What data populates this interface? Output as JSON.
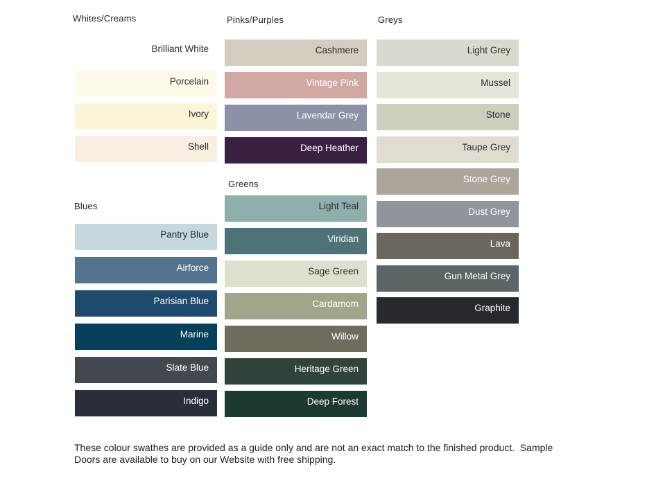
{
  "page": {
    "background": "#FFFFFF"
  },
  "groups": [
    {
      "title": "Whites/Creams",
      "swatches": [
        {
          "name": "Brilliant White",
          "color": "#FFFFFF",
          "label_color": "#2D2D2D"
        },
        {
          "name": "Porcelain",
          "color": "#FDFBE7",
          "label_color": "#2D2D2D"
        },
        {
          "name": "Ivory",
          "color": "#FAF5D8",
          "label_color": "#2D2D2D"
        },
        {
          "name": "Shell",
          "color": "#F8EFE0",
          "label_color": "#2D2D2D"
        }
      ]
    },
    {
      "title": "Blues",
      "swatches": [
        {
          "name": "Pantry Blue",
          "color": "#C5D8DE",
          "label_color": "#2D2D2D"
        },
        {
          "name": "Airforce",
          "color": "#53748E",
          "label_color": "#FFFFFF"
        },
        {
          "name": "Parisian Blue",
          "color": "#1E4A6B",
          "label_color": "#FFFFFF"
        },
        {
          "name": "Marine",
          "color": "#04405A",
          "label_color": "#FFFFFF"
        },
        {
          "name": "Slate Blue",
          "color": "#434850",
          "label_color": "#FFFFFF"
        },
        {
          "name": "Indigo",
          "color": "#2A2E38",
          "label_color": "#FFFFFF"
        }
      ]
    },
    {
      "title": "Pinks/Purples",
      "swatches": [
        {
          "name": "Cashmere",
          "color": "#D2CDBF",
          "label_color": "#2D2D2D"
        },
        {
          "name": "Vintage Pink",
          "color": "#D1A8A4",
          "label_color": "#FFFFFF"
        },
        {
          "name": "Lavendar Grey",
          "color": "#8C92A5",
          "label_color": "#FFFFFF"
        },
        {
          "name": "Deep Heather",
          "color": "#3A2042",
          "label_color": "#FFFFFF"
        }
      ]
    },
    {
      "title": "Greens",
      "swatches": [
        {
          "name": "Light Teal",
          "color": "#8FAFAD",
          "label_color": "#2D2D2D"
        },
        {
          "name": "Viridian",
          "color": "#4D7277",
          "label_color": "#FFFFFF"
        },
        {
          "name": "Sage Green",
          "color": "#DDE0CC",
          "label_color": "#2D2D2D"
        },
        {
          "name": "Cardamom",
          "color": "#A0A689",
          "label_color": "#FFFFFF"
        },
        {
          "name": "Willow",
          "color": "#6E6C5C",
          "label_color": "#FFFFFF"
        },
        {
          "name": "Heritage Green",
          "color": "#314439",
          "label_color": "#FFFFFF"
        },
        {
          "name": "Deep Forest",
          "color": "#1C3A31",
          "label_color": "#FFFFFF"
        }
      ]
    },
    {
      "title": "Greys",
      "swatches": [
        {
          "name": "Light Grey",
          "color": "#D9DACE",
          "label_color": "#2D2D2D"
        },
        {
          "name": "Mussel",
          "color": "#E3E5D7",
          "label_color": "#2D2D2D"
        },
        {
          "name": "Stone",
          "color": "#CCCFBE",
          "label_color": "#2D2D2D"
        },
        {
          "name": "Taupe Grey",
          "color": "#E1DCD0",
          "label_color": "#2D2D2D"
        },
        {
          "name": "Stone Grey",
          "color": "#ACA59A",
          "label_color": "#FFFFFF"
        },
        {
          "name": "Dust Grey",
          "color": "#90949B",
          "label_color": "#FFFFFF"
        },
        {
          "name": "Lava",
          "color": "#6A665B",
          "label_color": "#FFFFFF"
        },
        {
          "name": "Gun Metal Grey",
          "color": "#596665",
          "label_color": "#FFFFFF"
        },
        {
          "name": "Graphite",
          "color": "#262A2F",
          "label_color": "#FFFFFF"
        }
      ]
    }
  ],
  "footer": {
    "line1": "These colour swathes are provided as a guide only and are not an exact match to the finished product.  Sample",
    "line2": "Doors are available to buy on our Website with free shipping."
  }
}
